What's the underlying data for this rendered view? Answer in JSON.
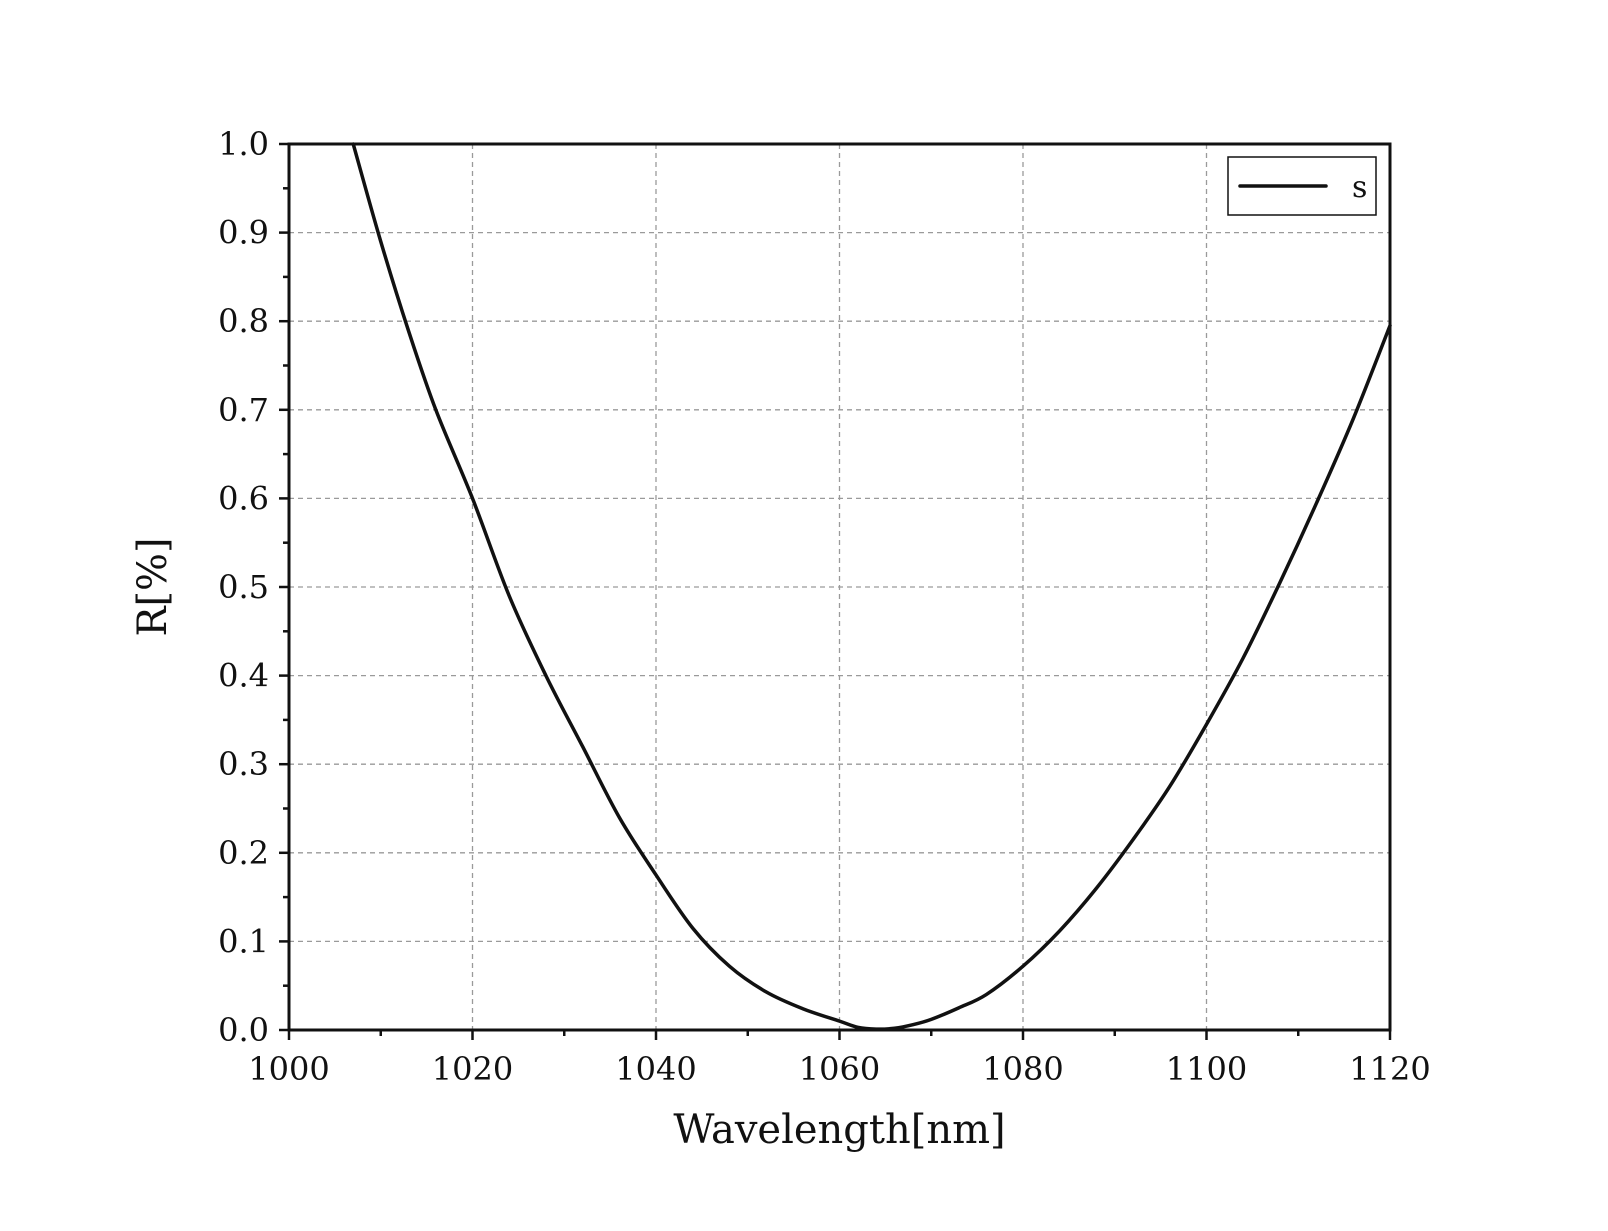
{
  "chart_data": {
    "type": "line",
    "title": "",
    "xlabel": "Wavelength[nm]",
    "ylabel": "R[%]",
    "xlim": [
      1000,
      1120
    ],
    "ylim": [
      0.0,
      1.0
    ],
    "x_ticks": [
      "1000",
      "1020",
      "1040",
      "1060",
      "1080",
      "1100",
      "1120"
    ],
    "y_ticks": [
      "0.0",
      "0.1",
      "0.2",
      "0.3",
      "0.4",
      "0.5",
      "0.6",
      "0.7",
      "0.8",
      "0.9",
      "1.0"
    ],
    "grid": true,
    "legend_position": "top-right",
    "series": [
      {
        "name": "s",
        "color": "#111111",
        "x": [
          1007,
          1010,
          1013,
          1016,
          1020,
          1024,
          1028,
          1032,
          1036,
          1040,
          1044,
          1048,
          1052,
          1056,
          1060,
          1062,
          1064,
          1066,
          1068,
          1070,
          1073,
          1076,
          1080,
          1084,
          1088,
          1092,
          1096,
          1100,
          1104,
          1108,
          1112,
          1116,
          1120
        ],
        "y": [
          1.0,
          0.89,
          0.79,
          0.7,
          0.6,
          0.49,
          0.4,
          0.32,
          0.24,
          0.175,
          0.115,
          0.072,
          0.043,
          0.024,
          0.01,
          0.003,
          0.001,
          0.002,
          0.006,
          0.012,
          0.025,
          0.04,
          0.072,
          0.112,
          0.16,
          0.215,
          0.275,
          0.345,
          0.42,
          0.505,
          0.595,
          0.69,
          0.795
        ]
      }
    ]
  }
}
